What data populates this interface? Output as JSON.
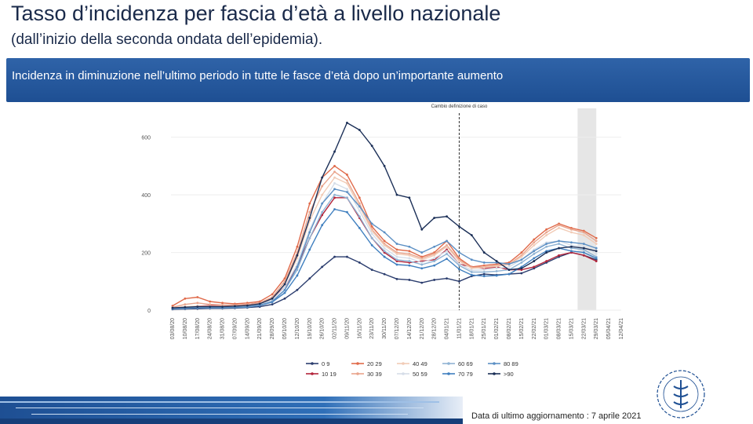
{
  "header": {
    "title": "Tasso d’incidenza per fascia d’età a livello nazionale",
    "subtitle": "(dall’inizio della seconda ondata dell’epidemia)."
  },
  "banner": {
    "text": "Incidenza in diminuzione nell’ultimo periodo in tutte le fasce d’età dopo un’importante aumento"
  },
  "footer": {
    "update_note": "Data di ultimo aggiornamento : 7 aprile 2021"
  },
  "colors": {
    "banner": "#2f63a8",
    "title": "#1a2a4a",
    "shade": "#e6e6e6"
  },
  "chart_data": {
    "type": "line",
    "annotation": "Cambio definizione di caso",
    "annotation_at": "11/01/21",
    "shaded_from": "22/03/21",
    "shaded_to": "29/03/21",
    "ylim": [
      0,
      700
    ],
    "yticks": [
      0,
      200,
      400,
      600
    ],
    "xticks": [
      "03/08/20",
      "10/08/20",
      "17/08/20",
      "24/08/20",
      "31/08/20",
      "07/09/20",
      "14/09/20",
      "21/09/20",
      "28/09/20",
      "05/10/20",
      "12/10/20",
      "19/10/20",
      "26/10/20",
      "02/11/20",
      "09/11/20",
      "16/11/20",
      "23/11/20",
      "30/11/20",
      "07/12/20",
      "14/12/20",
      "21/12/20",
      "28/12/20",
      "04/01/21",
      "11/01/21",
      "18/01/21",
      "25/01/21",
      "01/02/21",
      "08/02/21",
      "15/02/21",
      "22/02/21",
      "01/03/21",
      "08/03/21",
      "15/03/21",
      "22/03/21",
      "29/03/21",
      "05/04/21",
      "12/04/21"
    ],
    "legend_position": "bottom",
    "series": [
      {
        "name": "0 9",
        "color": "#2b3d6e",
        "values": [
          3,
          4,
          5,
          6,
          6,
          7,
          9,
          12,
          20,
          40,
          70,
          110,
          150,
          185,
          185,
          165,
          140,
          125,
          108,
          105,
          95,
          105,
          110,
          100,
          118,
          125,
          122,
          125,
          128,
          145,
          165,
          185,
          200,
          190,
          175
        ]
      },
      {
        "name": "10 19",
        "color": "#b3243a",
        "values": [
          8,
          10,
          14,
          16,
          16,
          18,
          20,
          25,
          40,
          80,
          150,
          250,
          330,
          390,
          390,
          320,
          250,
          200,
          170,
          165,
          170,
          175,
          210,
          160,
          150,
          145,
          150,
          140,
          140,
          150,
          170,
          190,
          200,
          190,
          170
        ]
      },
      {
        "name": "20 29",
        "color": "#e06a4a",
        "values": [
          15,
          40,
          45,
          30,
          25,
          22,
          25,
          30,
          55,
          110,
          220,
          370,
          460,
          500,
          470,
          390,
          290,
          240,
          210,
          205,
          185,
          200,
          240,
          180,
          150,
          155,
          160,
          165,
          200,
          245,
          280,
          300,
          285,
          275,
          250
        ]
      },
      {
        "name": "30 39",
        "color": "#e9a48c",
        "values": [
          10,
          20,
          25,
          20,
          18,
          18,
          20,
          25,
          45,
          100,
          200,
          340,
          430,
          480,
          450,
          370,
          280,
          230,
          200,
          195,
          180,
          195,
          225,
          175,
          148,
          150,
          155,
          160,
          190,
          235,
          270,
          295,
          280,
          270,
          240
        ]
      },
      {
        "name": "40 49",
        "color": "#f1cbb6",
        "values": [
          8,
          12,
          14,
          14,
          14,
          14,
          16,
          22,
          40,
          90,
          180,
          310,
          400,
          460,
          440,
          360,
          275,
          225,
          195,
          190,
          175,
          190,
          220,
          170,
          145,
          148,
          152,
          158,
          185,
          225,
          260,
          285,
          270,
          260,
          230
        ]
      },
      {
        "name": "50 59",
        "color": "#d5dde8",
        "values": [
          6,
          10,
          12,
          12,
          12,
          12,
          15,
          20,
          35,
          80,
          160,
          280,
          370,
          440,
          420,
          345,
          265,
          215,
          185,
          180,
          165,
          180,
          205,
          160,
          138,
          140,
          145,
          150,
          175,
          210,
          235,
          240,
          225,
          220,
          195
        ]
      },
      {
        "name": "60 69",
        "color": "#8fb3d4",
        "values": [
          5,
          7,
          9,
          9,
          9,
          10,
          12,
          18,
          30,
          70,
          140,
          250,
          340,
          400,
          390,
          325,
          250,
          205,
          175,
          170,
          158,
          170,
          195,
          155,
          132,
          132,
          135,
          140,
          165,
          195,
          220,
          230,
          215,
          210,
          185
        ]
      },
      {
        "name": "70 79",
        "color": "#3f7fbf",
        "values": [
          5,
          6,
          8,
          8,
          8,
          9,
          11,
          16,
          28,
          60,
          120,
          210,
          295,
          350,
          340,
          285,
          225,
          185,
          158,
          155,
          145,
          155,
          178,
          142,
          122,
          118,
          120,
          125,
          150,
          180,
          205,
          215,
          205,
          200,
          180
        ]
      },
      {
        "name": "80 89",
        "color": "#5b8fc4",
        "values": [
          5,
          6,
          8,
          8,
          8,
          9,
          11,
          17,
          30,
          70,
          150,
          270,
          370,
          420,
          410,
          360,
          300,
          270,
          230,
          220,
          200,
          220,
          240,
          200,
          175,
          165,
          165,
          160,
          175,
          205,
          230,
          240,
          235,
          230,
          215
        ]
      },
      {
        "name": ">90",
        "color": "#1b2f57",
        "values": [
          8,
          10,
          12,
          12,
          12,
          14,
          16,
          22,
          40,
          90,
          190,
          320,
          460,
          550,
          650,
          625,
          570,
          500,
          400,
          390,
          280,
          320,
          325,
          290,
          260,
          200,
          170,
          140,
          145,
          170,
          200,
          215,
          220,
          215,
          205
        ]
      }
    ]
  }
}
